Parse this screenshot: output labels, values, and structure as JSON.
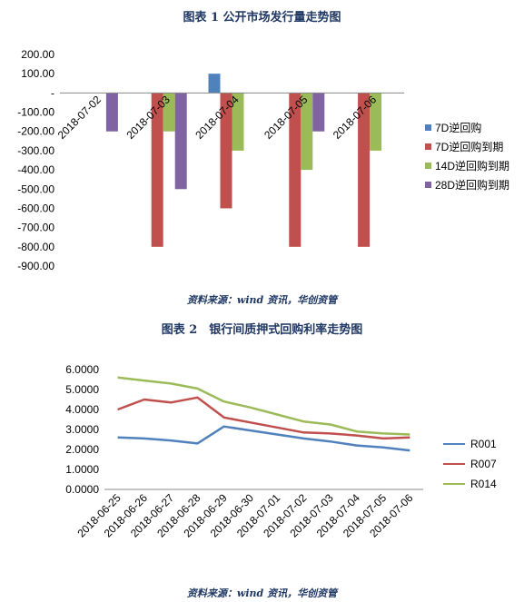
{
  "figure1": {
    "title": "图表 1 公开市场发行量走势图",
    "source": "资料来源：wind 资讯，华创资管",
    "chart_data": {
      "type": "bar",
      "categories": [
        "2018-07-02",
        "2018-07-03",
        "2018-07-04",
        "2018-07-05",
        "2018-07-06"
      ],
      "ylim": [
        -900,
        200
      ],
      "yticks": [
        "200.00",
        "100.00",
        "-",
        "-100.00",
        "-200.00",
        "-300.00",
        "-400.00",
        "-500.00",
        "-600.00",
        "-700.00",
        "-800.00",
        "-900.00"
      ],
      "ytick_values": [
        200,
        100,
        0,
        -100,
        -200,
        -300,
        -400,
        -500,
        -600,
        -700,
        -800,
        -900
      ],
      "series": [
        {
          "name": "7D逆回购",
          "color": "#4f81bd",
          "values": [
            0,
            0,
            100,
            0,
            0
          ]
        },
        {
          "name": "7D逆回购到期",
          "color": "#c0504d",
          "values": [
            0,
            -800,
            -600,
            -800,
            -800
          ]
        },
        {
          "name": "14D逆回购到期",
          "color": "#9bbb59",
          "values": [
            0,
            -200,
            -300,
            -400,
            -300
          ]
        },
        {
          "name": "28D逆回购到期",
          "color": "#8064a2",
          "values": [
            -200,
            -500,
            0,
            -200,
            0
          ]
        }
      ],
      "legend_position": "right"
    }
  },
  "figure2": {
    "title": "图表 2　银行间质押式回购利率走势图",
    "source": "资料来源：wind 资讯，华创资管",
    "chart_data": {
      "type": "line",
      "x": [
        "2018-06-25",
        "2018-06-26",
        "2018-06-27",
        "2018-06-28",
        "2018-06-29",
        "2018-06-30",
        "2018-07-01",
        "2018-07-02",
        "2018-07-03",
        "2018-07-04",
        "2018-07-05",
        "2018-07-06"
      ],
      "ylim": [
        0,
        6
      ],
      "yticks": [
        "6.0000",
        "5.0000",
        "4.0000",
        "3.0000",
        "2.0000",
        "1.0000",
        "0.0000"
      ],
      "ytick_values": [
        6,
        5,
        4,
        3,
        2,
        1,
        0
      ],
      "series": [
        {
          "name": "R001",
          "color": "#4f81bd",
          "values": [
            2.6,
            2.55,
            2.45,
            2.3,
            3.15,
            2.95,
            2.75,
            2.55,
            2.4,
            2.2,
            2.1,
            1.95
          ]
        },
        {
          "name": "R007",
          "color": "#c0504d",
          "values": [
            4.0,
            4.5,
            4.35,
            4.6,
            3.6,
            3.35,
            3.1,
            2.85,
            2.8,
            2.7,
            2.55,
            2.6
          ]
        },
        {
          "name": "R014",
          "color": "#9bbb59",
          "values": [
            5.6,
            5.45,
            5.3,
            5.05,
            4.4,
            4.1,
            3.75,
            3.4,
            3.25,
            2.9,
            2.8,
            2.75
          ]
        }
      ],
      "legend_position": "right"
    }
  }
}
